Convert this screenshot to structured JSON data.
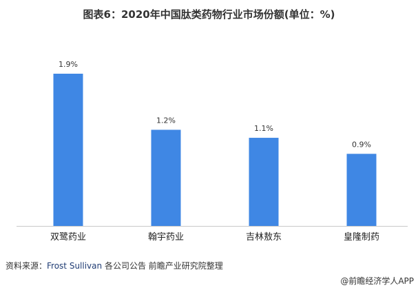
{
  "chart_data": {
    "type": "bar",
    "title": "图表6：2020年中国肽类药物行业市场份额(单位：%)",
    "categories": [
      "双鹭药业",
      "翰宇药业",
      "吉林敖东",
      "皇隆制药"
    ],
    "values": [
      1.9,
      1.2,
      1.1,
      0.9
    ],
    "data_labels": [
      "1.9%",
      "1.2%",
      "1.1%",
      "0.9%"
    ],
    "xlabel": "",
    "ylabel": "",
    "ylim": [
      0,
      1.9
    ],
    "grid": false,
    "bar_color": "#3f87e4"
  },
  "source": {
    "prefix": "资料来源：",
    "highlight": "Frost Sullivan",
    "rest": " 各公司公告 前瞻产业研究院整理"
  },
  "credit": "@前瞻经济学人APP"
}
